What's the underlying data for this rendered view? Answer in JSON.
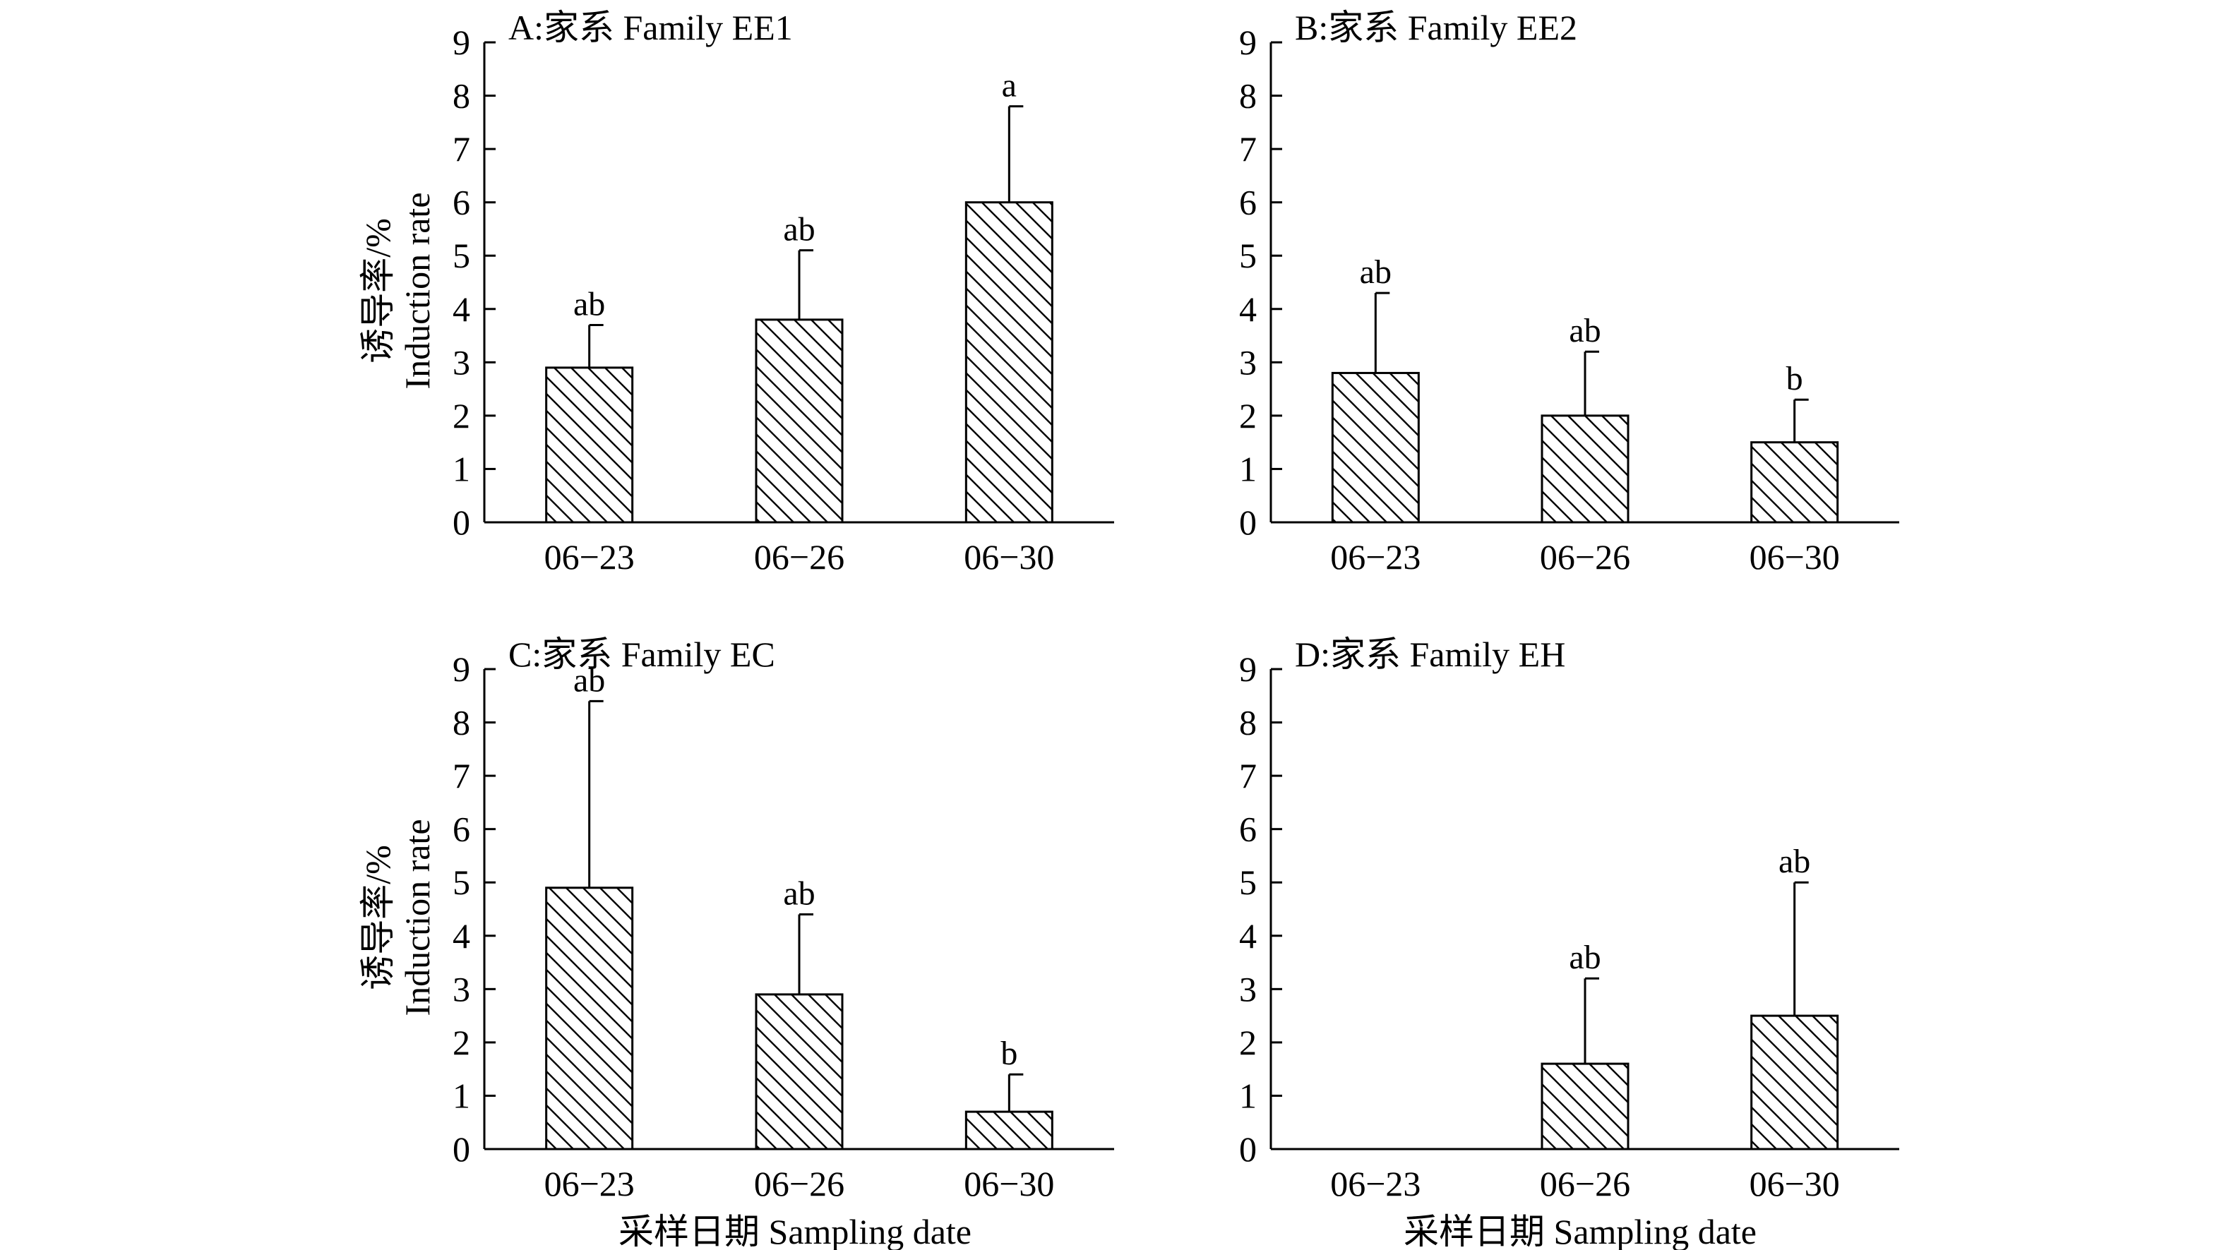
{
  "figure": {
    "xlabel": "采样日期 Sampling date",
    "ylabel_cn": "诱导率/%",
    "ylabel_en": "Induction rate"
  },
  "chart_data": [
    {
      "type": "bar",
      "title": "A:家系 Family EE1",
      "categories": [
        "06−23",
        "06−26",
        "06−30"
      ],
      "values": [
        2.9,
        3.8,
        6.0
      ],
      "errors": [
        0.8,
        1.3,
        1.8
      ],
      "labels": [
        "ab",
        "ab",
        "a"
      ],
      "ylabel": "诱导率/% Induction rate",
      "xlabel": "",
      "ylim": [
        0,
        9
      ],
      "yticks": [
        0,
        1,
        2,
        3,
        4,
        5,
        6,
        7,
        8,
        9
      ],
      "pattern": "diagonal-hatch"
    },
    {
      "type": "bar",
      "title": "B:家系 Family EE2",
      "categories": [
        "06−23",
        "06−26",
        "06−30"
      ],
      "values": [
        2.8,
        2.0,
        1.5
      ],
      "errors": [
        1.5,
        1.2,
        0.8
      ],
      "labels": [
        "ab",
        "ab",
        "b"
      ],
      "ylabel": "",
      "xlabel": "",
      "ylim": [
        0,
        9
      ],
      "yticks": [
        0,
        1,
        2,
        3,
        4,
        5,
        6,
        7,
        8,
        9
      ],
      "pattern": "diagonal-hatch"
    },
    {
      "type": "bar",
      "title": "C:家系 Family EC",
      "categories": [
        "06−23",
        "06−26",
        "06−30"
      ],
      "values": [
        4.9,
        2.9,
        0.7
      ],
      "errors": [
        3.5,
        1.5,
        0.7
      ],
      "labels": [
        "ab",
        "ab",
        "b"
      ],
      "ylabel": "诱导率/% Induction rate",
      "xlabel": "采样日期 Sampling date",
      "ylim": [
        0,
        9
      ],
      "yticks": [
        0,
        1,
        2,
        3,
        4,
        5,
        6,
        7,
        8,
        9
      ],
      "pattern": "diagonal-hatch"
    },
    {
      "type": "bar",
      "title": "D:家系 Family EH",
      "categories": [
        "06−23",
        "06−26",
        "06−30"
      ],
      "values": [
        0,
        1.6,
        2.5
      ],
      "errors": [
        0,
        1.6,
        2.5
      ],
      "labels": [
        "",
        "ab",
        "ab"
      ],
      "ylabel": "",
      "xlabel": "采样日期 Sampling date",
      "ylim": [
        0,
        9
      ],
      "yticks": [
        0,
        1,
        2,
        3,
        4,
        5,
        6,
        7,
        8,
        9
      ],
      "pattern": "diagonal-hatch"
    }
  ]
}
